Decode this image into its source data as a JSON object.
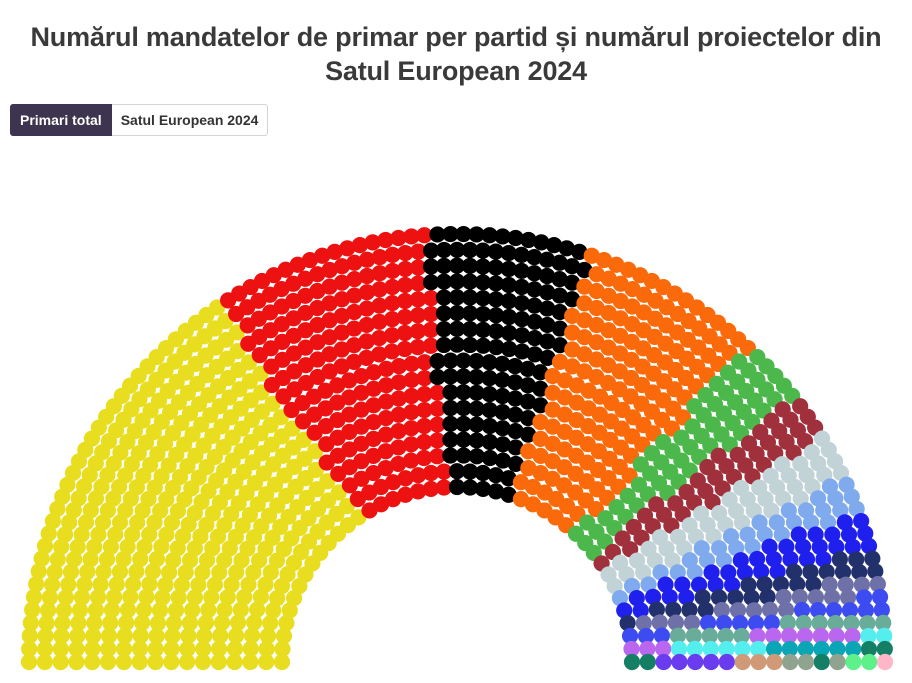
{
  "title": {
    "line1": "Numărul mandatelor de primar per partid și numărul proiectelor din",
    "line2": "Satul European 2024"
  },
  "tabs": [
    {
      "label": "Primari total",
      "active": true
    },
    {
      "label": "Satul European 2024",
      "active": false
    }
  ],
  "chart_data": {
    "type": "parliament",
    "title": "Numărul mandatelor de primar per partid și numărul proiectelor din Satul European 2024",
    "xlabel": "",
    "ylabel": "",
    "rows": 17,
    "series": [
      {
        "color": "#e8dd1e",
        "value": 395
      },
      {
        "color": "#ee1111",
        "value": 205
      },
      {
        "color": "#000000",
        "value": 150
      },
      {
        "color": "#fa6a0a",
        "value": 168
      },
      {
        "color": "#4cb84c",
        "value": 62
      },
      {
        "color": "#a0303c",
        "value": 44
      },
      {
        "color": "#c2d3d8",
        "value": 46
      },
      {
        "color": "#80aaee",
        "value": 32
      },
      {
        "color": "#2020ee",
        "value": 36
      },
      {
        "color": "#22306c",
        "value": 24
      },
      {
        "color": "#6e70a8",
        "value": 18
      },
      {
        "color": "#3c4cf0",
        "value": 16
      },
      {
        "color": "#6aac9a",
        "value": 12
      },
      {
        "color": "#bb66ee",
        "value": 10
      },
      {
        "color": "#55eeee",
        "value": 8
      },
      {
        "color": "#0aa6b6",
        "value": 6
      },
      {
        "color": "#157f66",
        "value": 5
      },
      {
        "color": "#6a3cf0",
        "value": 5
      },
      {
        "color": "#d09a78",
        "value": 3
      },
      {
        "color": "#8fa38f",
        "value": 3
      },
      {
        "color": "#5ef08a",
        "value": 2
      },
      {
        "color": "#ffb6c8",
        "value": 1
      }
    ]
  }
}
